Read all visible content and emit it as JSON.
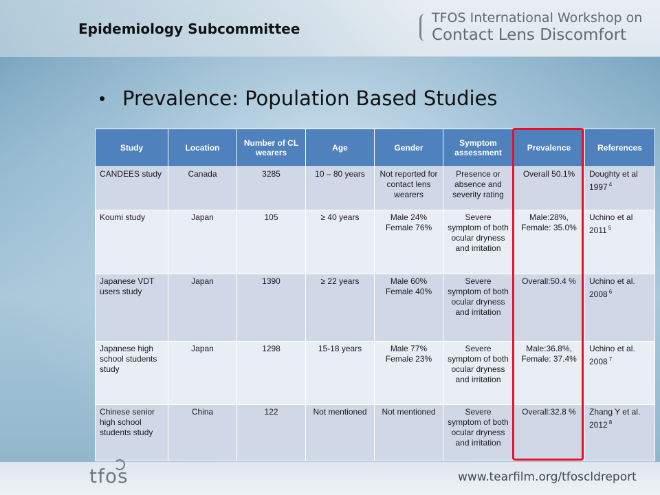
{
  "header": {
    "subcommittee": "Epidemiology Subcommittee",
    "workshop_line1": "TFOS International Workshop on",
    "workshop_line2": "Contact Lens Discomfort"
  },
  "bullet": {
    "text": "Prevalence: Population Based Studies"
  },
  "table": {
    "headers": [
      "Study",
      "Location",
      "Number of CL wearers",
      "Age",
      "Gender",
      "Symptom assessment",
      "Prevalence",
      "References"
    ],
    "rows": [
      {
        "study": "CANDEES study",
        "location": "Canada",
        "number": "3285",
        "age": "10 – 80 years",
        "gender": "Not reported for contact lens wearers",
        "symptom": "Presence or absence and severity rating",
        "prevalence": "Overall 50.1%",
        "reference": "Doughty et al 1997",
        "ref_sup": "4"
      },
      {
        "study": "Koumi study",
        "location": "Japan",
        "number": "105",
        "age": "≥ 40 years",
        "gender": "Male 24% Female 76%",
        "symptom": "Severe symptom of both ocular dryness and irritation",
        "prevalence": "Male:28%, Female: 35.0%",
        "reference": "Uchino et al 2011",
        "ref_sup": "5"
      },
      {
        "study": "Japanese VDT users study",
        "location": "Japan",
        "number": "1390",
        "age": "≥ 22 years",
        "gender": "Male 60% Female 40%",
        "symptom": "Severe symptom of both ocular dryness and irritation",
        "prevalence": "Overall:50.4 %",
        "reference": "Uchino et al. 2008",
        "ref_sup": "6"
      },
      {
        "study": "Japanese high school students study",
        "location": "Japan",
        "number": "1298",
        "age": "15-18 years",
        "gender": "Male 77% Female 23%",
        "symptom": "Severe symptom of both ocular dryness and irritation",
        "prevalence": "Male:36.8%, Female: 37.4%",
        "reference": "Uchino et al. 2008",
        "ref_sup": "7"
      },
      {
        "study": "Chinese senior high school students study",
        "location": "China",
        "number": "122",
        "age": "Not mentioned",
        "gender": "Not mentioned",
        "symptom": "Severe symptom of both ocular dryness and irritation",
        "prevalence": "Overall:32.8 %",
        "reference": "Zhang Y et al. 2012",
        "ref_sup": "8"
      }
    ]
  },
  "highlight": {
    "column": "Prevalence",
    "color": "#e8102a"
  },
  "footer": {
    "logo_text": "tfos",
    "url": "www.tearfilm.org/tfoscldreport"
  },
  "colors": {
    "header_blue": "#4f81bd",
    "row_dark": "#d0d8e8",
    "row_light": "#e9edf4"
  }
}
